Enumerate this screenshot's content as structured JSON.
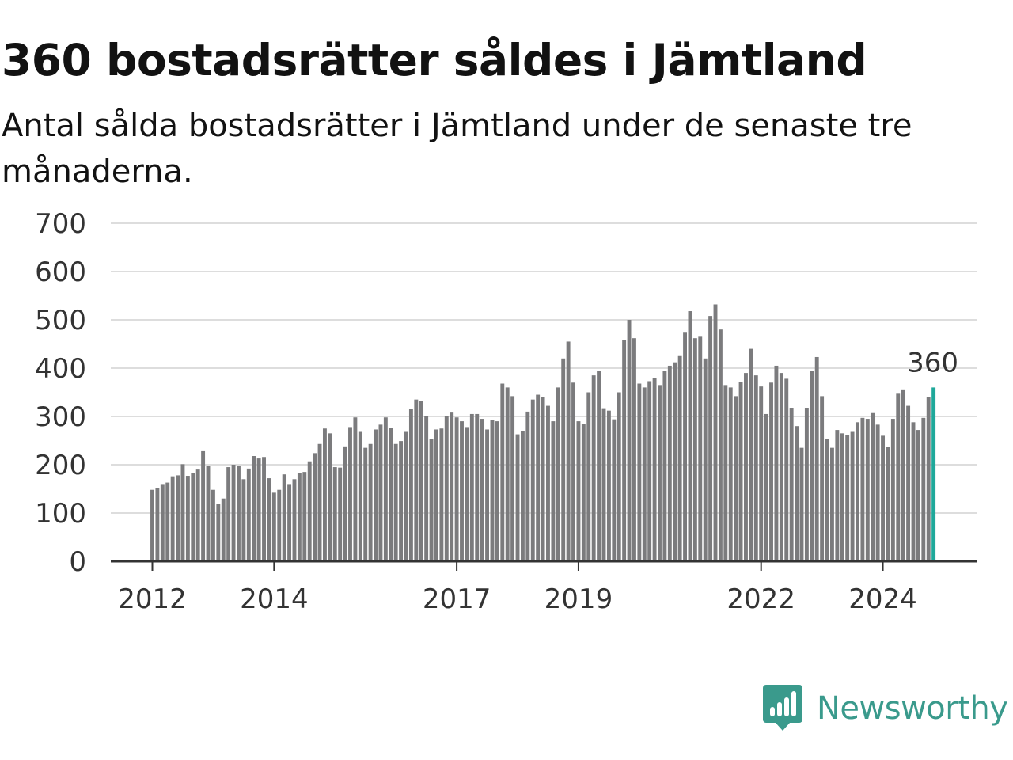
{
  "title": "360 bostadsrätter såldes i Jämtland",
  "subtitle": "Antal sålda bostadsrätter i Jämtland under de senaste tre månaderna.",
  "brand": {
    "name": "Newsworthy",
    "icon": "bar-chart-speech-bubble-icon",
    "color": "#3a9a8c"
  },
  "colors": {
    "bar": "#7b7b7d",
    "highlight": "#1fa89a",
    "grid": "#dddddd",
    "axis": "#333333"
  },
  "chart_data": {
    "type": "bar",
    "title": "360 bostadsrätter såldes i Jämtland",
    "subtitle": "Antal sålda bostadsrätter i Jämtland under de senaste tre månaderna.",
    "xlabel": "",
    "ylabel": "",
    "ylim": [
      0,
      700
    ],
    "yticks": [
      0,
      100,
      200,
      300,
      400,
      500,
      600,
      700
    ],
    "grid": true,
    "x_start": "2012-01",
    "x_step": "month",
    "xticks": [
      {
        "label": "2012",
        "index": 0
      },
      {
        "label": "2014",
        "index": 24
      },
      {
        "label": "2017",
        "index": 60
      },
      {
        "label": "2019",
        "index": 84
      },
      {
        "label": "2022",
        "index": 120
      },
      {
        "label": "2024",
        "index": 144
      }
    ],
    "highlight": {
      "index": 154,
      "label": "360"
    },
    "values": [
      148,
      152,
      160,
      163,
      176,
      178,
      201,
      177,
      183,
      190,
      228,
      198,
      148,
      119,
      130,
      195,
      200,
      198,
      170,
      192,
      218,
      213,
      216,
      172,
      142,
      148,
      180,
      160,
      170,
      183,
      185,
      207,
      224,
      243,
      275,
      265,
      195,
      194,
      238,
      278,
      298,
      268,
      235,
      243,
      273,
      283,
      298,
      277,
      243,
      249,
      268,
      315,
      335,
      332,
      300,
      253,
      273,
      275,
      300,
      308,
      298,
      290,
      278,
      305,
      305,
      295,
      273,
      293,
      290,
      368,
      360,
      342,
      263,
      270,
      310,
      335,
      345,
      340,
      322,
      290,
      360,
      420,
      455,
      370,
      290,
      285,
      350,
      385,
      395,
      317,
      312,
      294,
      350,
      458,
      500,
      462,
      368,
      360,
      373,
      380,
      365,
      395,
      405,
      412,
      425,
      475,
      518,
      462,
      465,
      420,
      508,
      532,
      480,
      365,
      360,
      342,
      372,
      390,
      440,
      385,
      362,
      305,
      370,
      405,
      390,
      378,
      318,
      280,
      235,
      318,
      395,
      423,
      342,
      253,
      235,
      272,
      265,
      262,
      268,
      288,
      297,
      295,
      307,
      283,
      260,
      237,
      295,
      347,
      356,
      322,
      288,
      272,
      297,
      340,
      360
    ]
  }
}
